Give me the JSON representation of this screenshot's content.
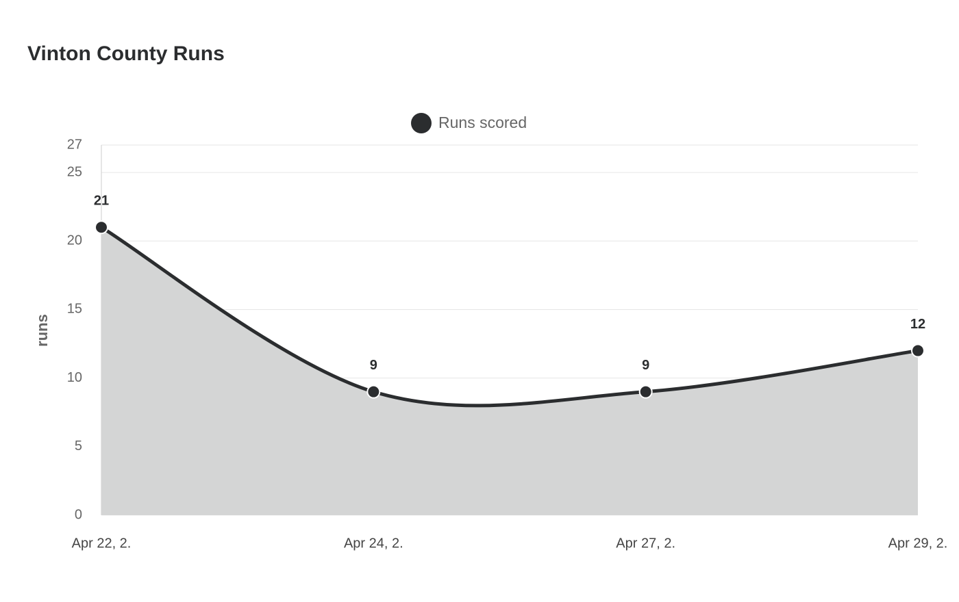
{
  "chart_data": {
    "type": "area",
    "title": "Vinton County Runs",
    "y_label": "runs",
    "categories": [
      "Apr 22, 2.",
      "Apr 24, 2.",
      "Apr 27, 2.",
      "Apr 29, 2."
    ],
    "series": [
      {
        "name": "Runs scored",
        "color": "#2b2d2f",
        "fill": "#d4d5d5",
        "values": [
          21,
          9,
          9,
          12
        ]
      }
    ],
    "ylim": [
      0,
      27
    ],
    "yticks": [
      0,
      5,
      10,
      15,
      20,
      25,
      27
    ],
    "grid": true,
    "legend": "top"
  }
}
